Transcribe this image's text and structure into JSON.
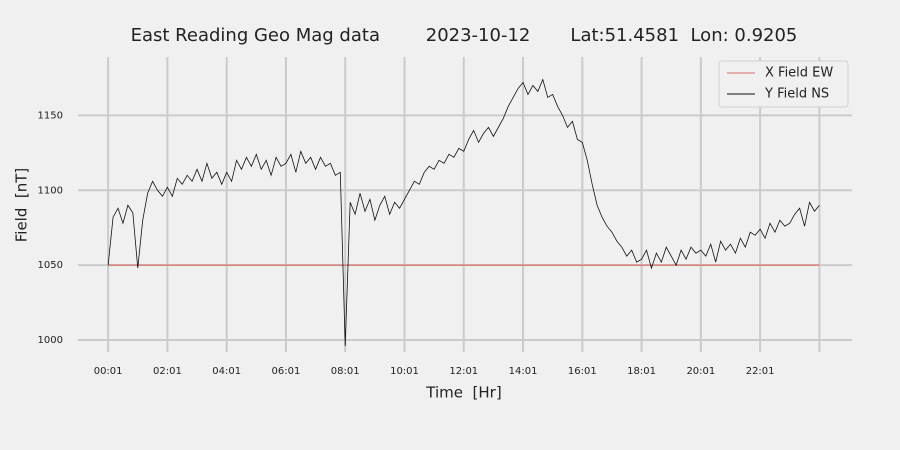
{
  "chart_data": {
    "type": "line",
    "title": "East Reading Geo Mag data        2023-10-12       Lat:51.4581  Lon: 0.9205",
    "xlabel": "Time  [Hr]",
    "ylabel": "Field  [nT]",
    "xlim": [
      -60,
      1507
    ],
    "ylim": [
      992,
      1189
    ],
    "xticks": [
      {
        "value": 1,
        "label": "00:01"
      },
      {
        "value": 121,
        "label": "02:01"
      },
      {
        "value": 241,
        "label": "04:01"
      },
      {
        "value": 361,
        "label": "06:01"
      },
      {
        "value": 481,
        "label": "08:01"
      },
      {
        "value": 601,
        "label": "10:01"
      },
      {
        "value": 721,
        "label": "12:01"
      },
      {
        "value": 841,
        "label": "14:01"
      },
      {
        "value": 961,
        "label": "16:01"
      },
      {
        "value": 1081,
        "label": "18:01"
      },
      {
        "value": 1201,
        "label": "20:01"
      },
      {
        "value": 1321,
        "label": "22:01"
      },
      {
        "value": 1441,
        "label": null
      }
    ],
    "yticks": [
      1000,
      1050,
      1100,
      1150
    ],
    "grid": true,
    "legend": "upper right",
    "series": [
      {
        "name": "X Field EW",
        "color": "#d9726b",
        "x": [
          1,
          1441
        ],
        "values": [
          1050,
          1050
        ]
      },
      {
        "name": "Y Field NS",
        "color": "#111111",
        "x": [
          1,
          11,
          21,
          31,
          41,
          51,
          61,
          71,
          81,
          91,
          101,
          111,
          121,
          131,
          141,
          151,
          161,
          171,
          181,
          191,
          201,
          211,
          221,
          231,
          241,
          251,
          261,
          271,
          281,
          291,
          301,
          311,
          321,
          331,
          341,
          351,
          361,
          371,
          381,
          391,
          401,
          411,
          421,
          431,
          441,
          451,
          461,
          471,
          481,
          491,
          501,
          511,
          521,
          531,
          541,
          551,
          561,
          571,
          581,
          591,
          601,
          611,
          621,
          631,
          641,
          651,
          661,
          671,
          681,
          691,
          701,
          711,
          721,
          731,
          741,
          751,
          761,
          771,
          781,
          791,
          801,
          811,
          821,
          831,
          841,
          851,
          861,
          871,
          881,
          891,
          901,
          911,
          921,
          931,
          941,
          951,
          961,
          971,
          981,
          991,
          1001,
          1011,
          1021,
          1031,
          1041,
          1051,
          1061,
          1071,
          1081,
          1091,
          1101,
          1111,
          1121,
          1131,
          1141,
          1151,
          1161,
          1171,
          1181,
          1191,
          1201,
          1211,
          1221,
          1231,
          1241,
          1251,
          1261,
          1271,
          1281,
          1291,
          1301,
          1311,
          1321,
          1331,
          1341,
          1351,
          1361,
          1371,
          1381,
          1391,
          1401,
          1411,
          1421,
          1431,
          1441
        ],
        "values": [
          1050,
          1082,
          1088,
          1078,
          1090,
          1085,
          1048,
          1080,
          1098,
          1106,
          1100,
          1096,
          1102,
          1096,
          1108,
          1104,
          1110,
          1106,
          1114,
          1106,
          1118,
          1108,
          1112,
          1104,
          1112,
          1106,
          1120,
          1114,
          1122,
          1116,
          1124,
          1114,
          1120,
          1110,
          1122,
          1116,
          1118,
          1124,
          1112,
          1126,
          1118,
          1122,
          1114,
          1122,
          1116,
          1118,
          1110,
          1112,
          996,
          1092,
          1084,
          1098,
          1086,
          1094,
          1080,
          1090,
          1096,
          1084,
          1092,
          1088,
          1094,
          1100,
          1106,
          1104,
          1112,
          1116,
          1114,
          1120,
          1118,
          1124,
          1122,
          1128,
          1126,
          1134,
          1140,
          1132,
          1138,
          1142,
          1136,
          1142,
          1148,
          1156,
          1162,
          1168,
          1172,
          1164,
          1170,
          1166,
          1174,
          1162,
          1164,
          1156,
          1150,
          1142,
          1146,
          1134,
          1132,
          1120,
          1104,
          1090,
          1082,
          1076,
          1072,
          1066,
          1062,
          1056,
          1060,
          1052,
          1054,
          1060,
          1048,
          1058,
          1052,
          1062,
          1056,
          1050,
          1060,
          1054,
          1062,
          1058,
          1060,
          1056,
          1064,
          1052,
          1066,
          1060,
          1064,
          1058,
          1068,
          1062,
          1072,
          1070,
          1074,
          1068,
          1078,
          1072,
          1080,
          1076,
          1078,
          1084,
          1088,
          1076,
          1092,
          1086,
          1090
        ]
      }
    ]
  }
}
